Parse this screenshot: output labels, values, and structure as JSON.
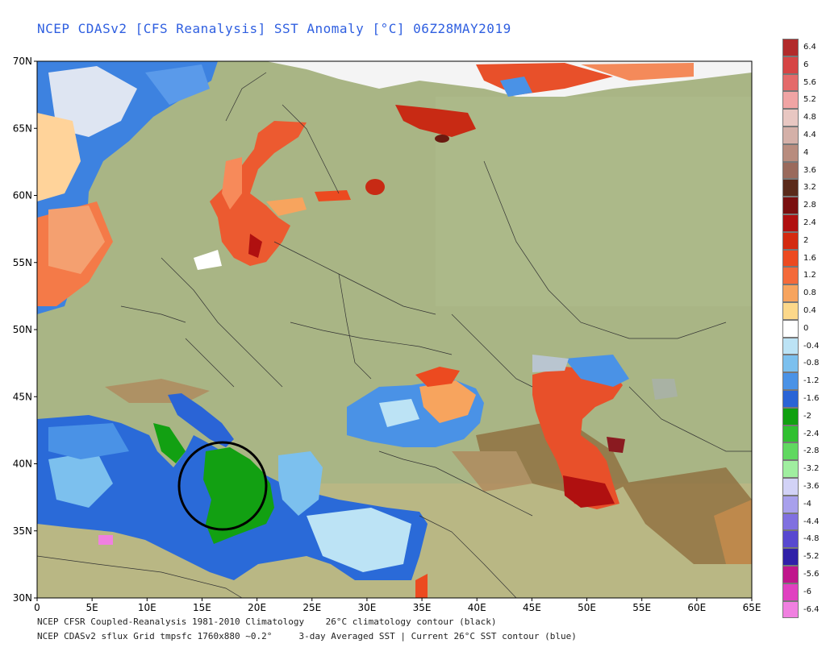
{
  "title": "NCEP CDASv2 [CFS Reanalysis] SST Anomaly [°C] 06Z28MAY2019",
  "footer": {
    "line1": "NCEP CFSR Coupled-Reanalysis 1981-2010 Climatology    26°C climatology contour (black)",
    "line2": "NCEP CDASv2 sflux Grid tmpsfc 1760x880 ~0.2°     3-day Averaged SST | Current 26°C SST contour (blue)"
  },
  "axes": {
    "lon_ticks": [
      "0",
      "5E",
      "10E",
      "15E",
      "20E",
      "25E",
      "30E",
      "35E",
      "40E",
      "45E",
      "50E",
      "55E",
      "60E",
      "65E"
    ],
    "lat_ticks": [
      "70N",
      "65N",
      "60N",
      "55N",
      "50N",
      "45N",
      "40N",
      "35N",
      "30N"
    ]
  },
  "colorbar": {
    "labels": [
      "6.4",
      "6",
      "5.6",
      "5.2",
      "4.8",
      "4.4",
      "4",
      "3.6",
      "3.2",
      "2.8",
      "2.4",
      "2",
      "1.6",
      "1.2",
      "0.8",
      "0.4",
      "0",
      "-0.4",
      "-0.8",
      "-1.2",
      "-1.6",
      "-2",
      "-2.4",
      "-2.8",
      "-3.2",
      "-3.6",
      "-4",
      "-4.4",
      "-4.8",
      "-5.2",
      "-5.6",
      "-6",
      "-6.4"
    ],
    "colors": [
      "#b22a2a",
      "#d64545",
      "#e46a6a",
      "#f0a4a4",
      "#e8c7c2",
      "#d4b0a8",
      "#b88c7e",
      "#9a6a5c",
      "#5a2a1a",
      "#7a0f0f",
      "#b01010",
      "#d42a10",
      "#ec4a20",
      "#f46a3a",
      "#f7a45e",
      "#fcd88a",
      "#ffffff",
      "#bce3f5",
      "#7cc0ee",
      "#4a92e6",
      "#2a64d6",
      "#10a010",
      "#30c030",
      "#60d860",
      "#a0eea0",
      "#d2d2f6",
      "#a8a0ec",
      "#8070e0",
      "#5848d0",
      "#3020a8",
      "#c0168c",
      "#e040c0",
      "#f080e0"
    ]
  },
  "map_annotations": {
    "circle_label": "",
    "colors": {
      "land_low": "#a9b585",
      "land_high": "#a08555",
      "ocean_neutral": "#f4f4f4",
      "warm": "#e8502a",
      "cool": "#2a6ad8",
      "green": "#12a012"
    }
  }
}
